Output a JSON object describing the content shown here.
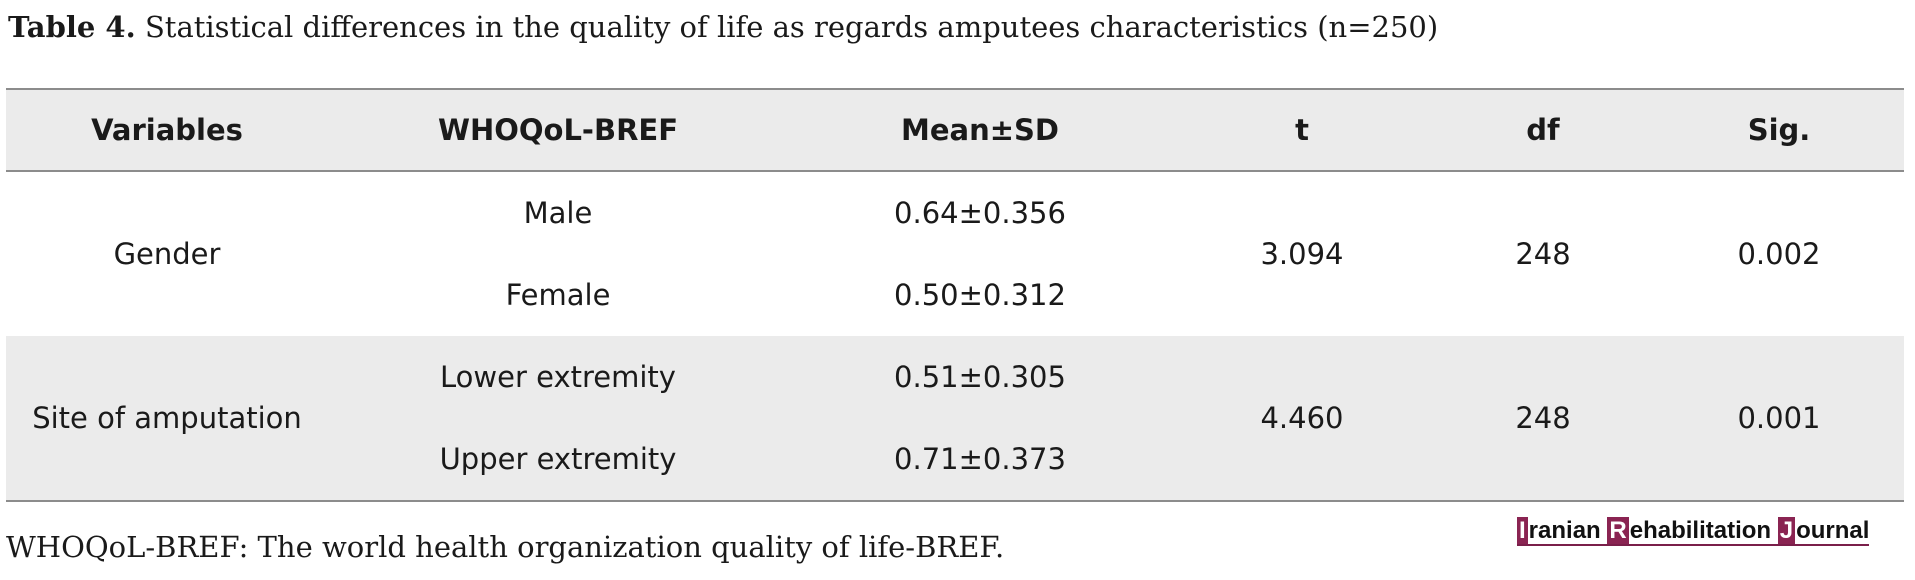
{
  "caption": {
    "label": "Table 4.",
    "text": "Statistical differences in the quality of life as regards amputees characteristics (n=250)"
  },
  "table": {
    "headers": [
      "Variables",
      "WHOQoL-BREF",
      "Mean±SD",
      "t",
      "df",
      "Sig."
    ],
    "groups": [
      {
        "variable": "Gender",
        "sub1": "Male",
        "mean1": "0.64±0.356",
        "sub2": "Female",
        "mean2": "0.50±0.312",
        "t": "3.094",
        "df": "248",
        "sig": "0.002"
      },
      {
        "variable": "Site of amputation",
        "sub1": "Lower extremity",
        "mean1": "0.51±0.305",
        "sub2": "Upper extremity",
        "mean2": "0.71±0.373",
        "t": "4.460",
        "df": "248",
        "sig": "0.001"
      }
    ]
  },
  "footnote": "WHOQoL-BREF: The world health organization quality of life-BREF.",
  "journal_logo": {
    "initial1": "I",
    "rest1": "ranian ",
    "initial2": "R",
    "rest2": "ehabilitation ",
    "initial3": "J",
    "rest3": "ournal",
    "accent_color": "#8a2452"
  }
}
